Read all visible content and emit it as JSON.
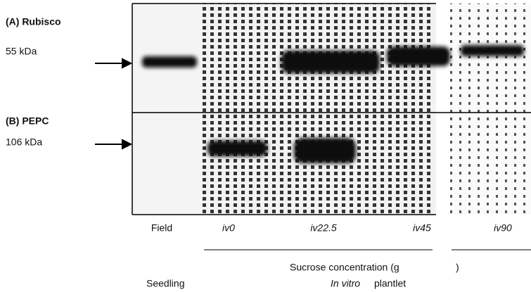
{
  "panels": [
    {
      "title": "(A) Rubisco",
      "size": "55 kDa"
    },
    {
      "title": "(B) PEPC",
      "size": "106 kDa"
    }
  ],
  "lanes": [
    "Field",
    "iv0",
    "iv22.5",
    "iv45",
    "iv90"
  ],
  "caption": {
    "start": "Sucrose concentration (g",
    "end": ")"
  },
  "groups": {
    "seedling": "Seedling",
    "plantlet_italic": "In vitro",
    "plantlet": "plantlet"
  }
}
